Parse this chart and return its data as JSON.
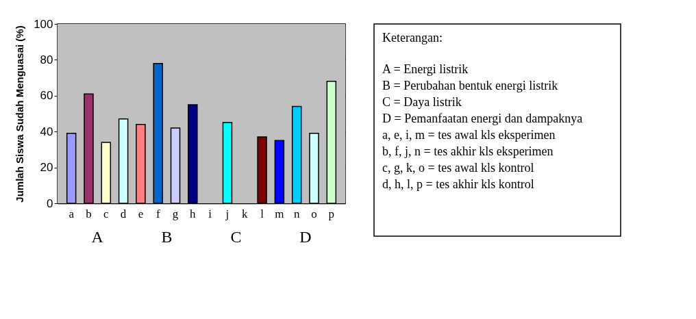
{
  "chart_data": {
    "type": "bar",
    "ylabel": "Jumlah Siswa Sudah Menguasai (%)",
    "categories": [
      "a",
      "b",
      "c",
      "d",
      "e",
      "f",
      "g",
      "h",
      "i",
      "j",
      "k",
      "l",
      "m",
      "n",
      "o",
      "p"
    ],
    "values": [
      39,
      61,
      34,
      47,
      44,
      78,
      42,
      55,
      null,
      45,
      null,
      37,
      35,
      54,
      39,
      68
    ],
    "colors": [
      "#9999ff",
      "#993366",
      "#ffffcc",
      "#ccffff",
      "#ff8080",
      "#0066cc",
      "#ccccff",
      "#000080",
      "#ffff00",
      "#00ffff",
      "#800080",
      "#800000",
      "#0000ff",
      "#00ccff",
      "#ccffff",
      "#ccffcc"
    ],
    "ylim": [
      0,
      100
    ],
    "yticks": [
      0,
      20,
      40,
      60,
      80,
      100
    ],
    "grid": "y",
    "annotations": [
      "A",
      "B",
      "C",
      "D",
      "Keterangan:",
      "A = Energi listrik",
      "B = Perubahan bentuk energi  listrik",
      "C = Daya listrik",
      "D = Pemanfaatan energi dan dampaknya",
      "a, e, i, m = tes awal kls eksperimen",
      "b, f, j, n = tes akhir kls eksperimen",
      "c, g, k, o = tes awal kls kontrol",
      "d, h, l, p = tes akhir kls kontrol"
    ]
  }
}
